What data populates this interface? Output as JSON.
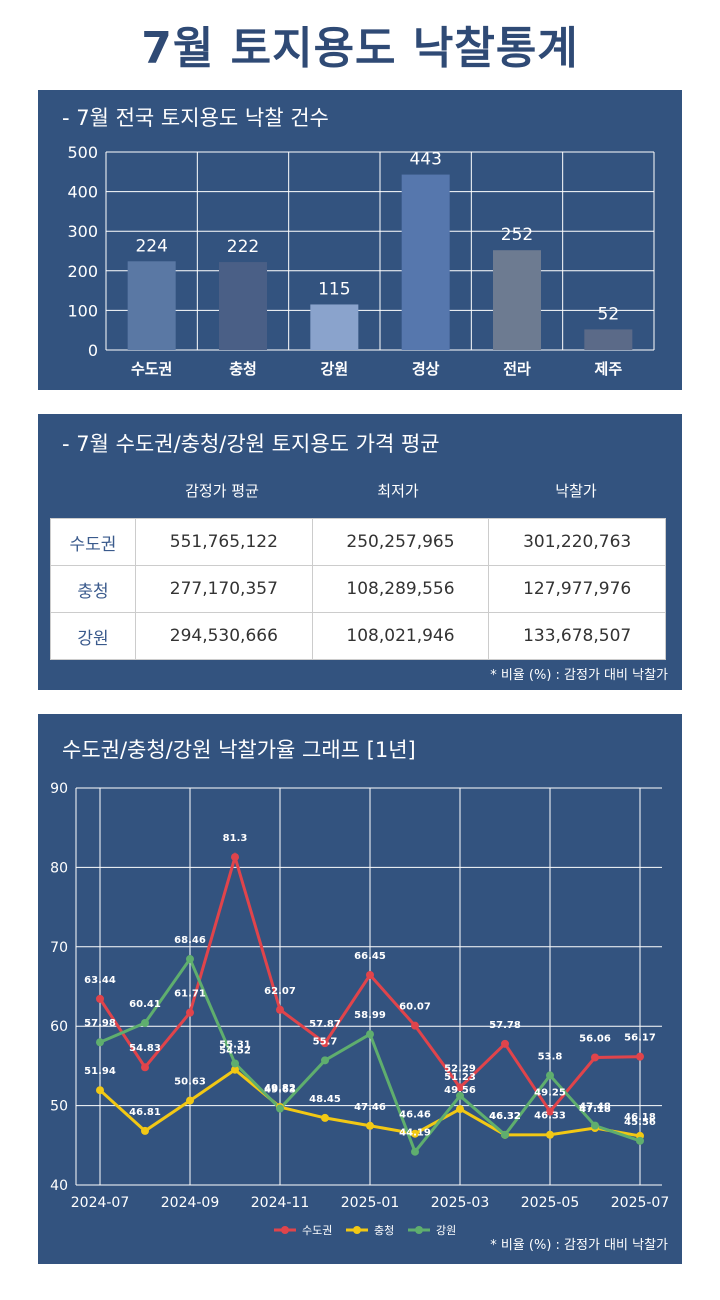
{
  "main_title": "7월 토지용도 낙찰통계",
  "panel1": {
    "title": "- 7월 전국 토지용도 낙찰 건수"
  },
  "panel2": {
    "title": "- 7월 수도권/충청/강원 토지용도 가격 평균",
    "columns": [
      "감정가 평균",
      "최저가",
      "낙찰가"
    ],
    "rows": [
      {
        "region": "수도권",
        "values": [
          "551,765,122",
          "250,257,965",
          "301,220,763"
        ]
      },
      {
        "region": "충청",
        "values": [
          "277,170,357",
          "108,289,556",
          "127,977,976"
        ]
      },
      {
        "region": "강원",
        "values": [
          "294,530,666",
          "108,021,946",
          "133,678,507"
        ]
      }
    ],
    "note": "* 비율 (%) : 감정가 대비 낙찰가"
  },
  "panel3": {
    "title": "수도권/충청/강원 낙찰가율 그래프 [1년]",
    "note": "* 비율 (%) : 감정가 대비 낙찰가"
  },
  "chart_data": [
    {
      "type": "bar",
      "title": "- 7월 전국 토지용도 낙찰 건수",
      "categories": [
        "수도권",
        "충청",
        "강원",
        "경상",
        "전라",
        "제주"
      ],
      "values": [
        224,
        222,
        115,
        443,
        252,
        52
      ],
      "colors": [
        "#5a78a4",
        "#4a5f86",
        "#8aa3cc",
        "#5677ad",
        "#6d7b91",
        "#5b6a88"
      ],
      "ylim": [
        0,
        500
      ],
      "yticks": [
        0,
        100,
        200,
        300,
        400,
        500
      ],
      "grid": true
    },
    {
      "type": "line",
      "title": "수도권/충청/강원 낙찰가율 그래프 [1년]",
      "x": [
        "2024-07",
        "2024-08",
        "2024-09",
        "2024-10",
        "2024-11",
        "2024-12",
        "2025-01",
        "2025-02",
        "2025-03",
        "2025-04",
        "2025-05",
        "2025-06",
        "2025-07"
      ],
      "xticks": [
        "2024-07",
        "2024-09",
        "2024-11",
        "2025-01",
        "2025-03",
        "2025-05",
        "2025-07"
      ],
      "ylim": [
        40,
        90
      ],
      "yticks": [
        40,
        50,
        60,
        70,
        80,
        90
      ],
      "grid": true,
      "legend_position": "bottom",
      "series": [
        {
          "name": "수도권",
          "color": "#e0444b",
          "values": [
            63.44,
            54.83,
            61.71,
            81.3,
            62.07,
            57.87,
            66.45,
            60.07,
            52.29,
            57.78,
            49.25,
            56.06,
            56.17
          ]
        },
        {
          "name": "충청",
          "color": "#f2c814",
          "values": [
            51.94,
            46.81,
            50.63,
            54.52,
            49.82,
            48.45,
            47.46,
            46.46,
            49.56,
            46.32,
            46.33,
            47.18,
            46.18
          ]
        },
        {
          "name": "강원",
          "color": "#5fae6e",
          "values": [
            57.98,
            60.41,
            68.46,
            55.31,
            49.63,
            55.7,
            58.99,
            44.19,
            51.23,
            46.32,
            53.8,
            47.48,
            45.56
          ]
        }
      ]
    }
  ]
}
